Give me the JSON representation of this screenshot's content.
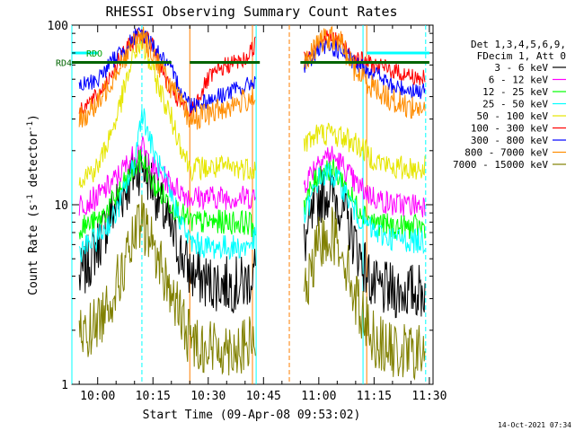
{
  "chart_data": {
    "type": "line",
    "title": "RHESSI Observing Summary Count Rates",
    "xlabel": "Start Time (09-Apr-08 09:53:02)",
    "ylabel": "Count Rate (s⁻¹ detector⁻¹)",
    "ylabel_main": "Count Rate (s",
    "ylabel_sup": "-1",
    "ylabel_tail": " detector",
    "ylabel_sup2": "-1",
    "ylabel_end": ")",
    "y_scale": "log",
    "ylim": [
      1,
      100
    ],
    "xlim": [
      "09:53",
      "11:31"
    ],
    "x_ticks": [
      "10:00",
      "10:15",
      "10:30",
      "10:45",
      "11:00",
      "11:15",
      "11:30"
    ],
    "y_ticks": [
      "1",
      "10",
      "100"
    ],
    "footer": "14-Oct-2021 07:34",
    "legend_placement": "right",
    "legend_header": [
      "Det 1,3,4,5,6,9,",
      "FDecim 1, Att 0"
    ],
    "flags": [
      {
        "label": "RDO",
        "color": "#00a000"
      },
      {
        "label": "RD4",
        "color": "#006400"
      }
    ],
    "vlines": [
      {
        "time": "09:53",
        "color": "#00ffff",
        "dash": false
      },
      {
        "time": "10:12",
        "color": "#00ffff",
        "dash": true
      },
      {
        "time": "10:25",
        "color": "#ff7f00",
        "dash": false
      },
      {
        "time": "10:42",
        "color": "#ff7f00",
        "dash": false
      },
      {
        "time": "10:43",
        "color": "#00ffff",
        "dash": false
      },
      {
        "time": "10:52",
        "color": "#ff7f00",
        "dash": true
      },
      {
        "time": "11:12",
        "color": "#00ffff",
        "dash": false
      },
      {
        "time": "11:13",
        "color": "#ff7f00",
        "dash": false
      },
      {
        "time": "11:29",
        "color": "#00ffff",
        "dash": true
      }
    ],
    "gap": [
      "10:44",
      "10:55"
    ],
    "x": [
      "09:55",
      "10:00",
      "10:05",
      "10:10",
      "10:12",
      "10:15",
      "10:20",
      "10:25",
      "10:30",
      "10:35",
      "10:40",
      "10:43",
      "10:56",
      "11:00",
      "11:03",
      "11:06",
      "11:10",
      "11:15",
      "11:20",
      "11:25",
      "11:29"
    ],
    "series": [
      {
        "name": "3 - 6 keV",
        "color": "#000000",
        "values": [
          3.8,
          6,
          10,
          15,
          17,
          13,
          7,
          4.2,
          3.7,
          3.6,
          3.6,
          4.5,
          6,
          11,
          12,
          10,
          6,
          3.4,
          3.3,
          3.3,
          3.3
        ]
      },
      {
        "name": "6 - 12 keV",
        "color": "#ff00ff",
        "values": [
          10,
          11,
          14,
          19,
          21,
          16,
          13,
          11,
          11,
          11,
          11,
          11,
          13,
          18,
          19,
          17,
          13,
          11,
          10,
          10,
          10
        ]
      },
      {
        "name": "12 - 25 keV",
        "color": "#00ff00",
        "values": [
          7.5,
          8,
          11,
          16,
          18,
          13,
          10,
          8,
          8,
          8,
          8,
          7.5,
          10,
          15,
          16,
          14,
          10,
          8,
          7.5,
          7.5,
          7.5
        ]
      },
      {
        "name": "25 - 50 keV",
        "color": "#00ffff",
        "values": [
          5.5,
          6.5,
          9,
          17,
          34,
          20,
          11,
          6.2,
          5.8,
          5.8,
          5.8,
          6.5,
          8.5,
          14,
          15,
          13,
          9,
          7,
          6.5,
          6.3,
          6.3
        ]
      },
      {
        "name": "50 - 100 keV",
        "color": "#e6e600",
        "values": [
          14,
          16,
          30,
          70,
          80,
          55,
          30,
          16,
          16,
          16,
          16,
          16,
          22,
          25,
          25,
          24,
          22,
          18,
          16,
          16,
          16
        ]
      },
      {
        "name": "100 - 300 keV",
        "color": "#ff0000",
        "values": [
          34,
          40,
          60,
          85,
          92,
          75,
          42,
          32,
          50,
          60,
          64,
          80,
          65,
          83,
          85,
          82,
          65,
          60,
          56,
          52,
          50
        ]
      },
      {
        "name": "300 - 800 keV",
        "color": "#0000ff",
        "values": [
          45,
          50,
          67,
          85,
          90,
          78,
          55,
          36,
          38,
          42,
          45,
          50,
          60,
          72,
          75,
          72,
          60,
          55,
          45,
          44,
          42
        ]
      },
      {
        "name": "800 - 7000 keV",
        "color": "#ff8c00",
        "values": [
          30,
          36,
          56,
          80,
          88,
          70,
          45,
          30,
          32,
          35,
          38,
          42,
          58,
          80,
          85,
          80,
          55,
          45,
          38,
          35,
          34
        ]
      },
      {
        "name": "7000 - 15000 keV",
        "color": "#808000",
        "values": [
          1.8,
          2.2,
          3.5,
          6.5,
          8,
          6,
          3.2,
          1.8,
          1.6,
          1.6,
          1.6,
          1.8,
          3,
          6,
          7,
          6,
          3,
          1.8,
          1.5,
          1.5,
          1.5
        ]
      }
    ]
  }
}
